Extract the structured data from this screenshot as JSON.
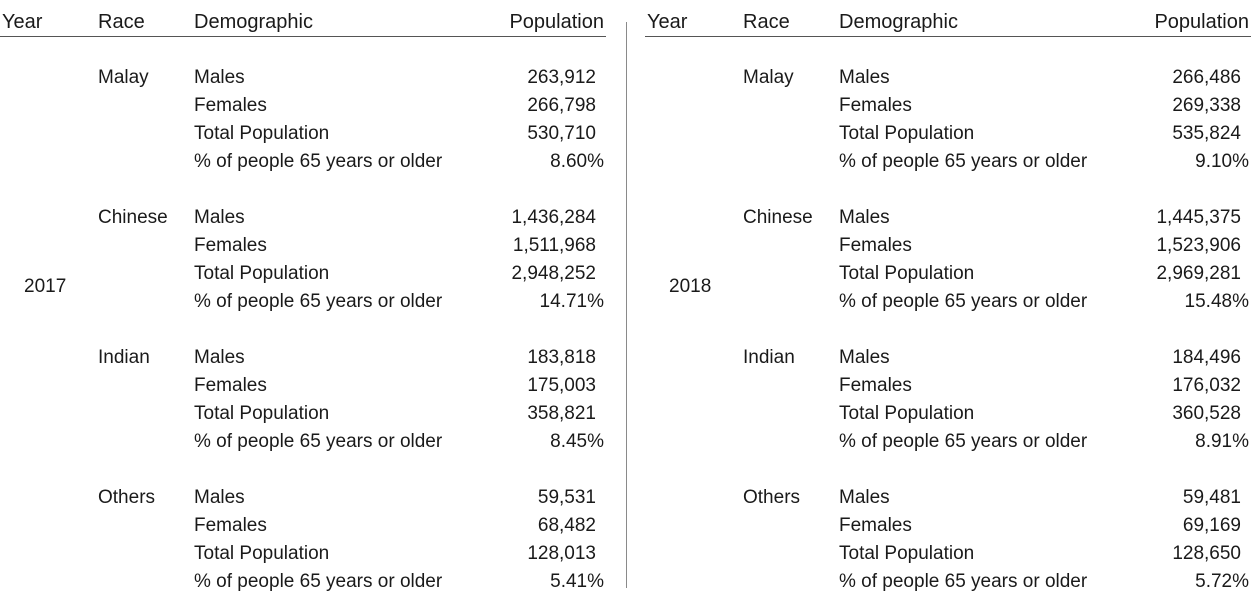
{
  "headers": {
    "year": "Year",
    "race": "Race",
    "demographic": "Demographic",
    "population": "Population"
  },
  "panels": [
    {
      "year": "2017",
      "groups": [
        {
          "race": "Malay",
          "rows": [
            {
              "label": "Males",
              "value": "263,912"
            },
            {
              "label": "Females",
              "value": "266,798"
            },
            {
              "label": "Total Population",
              "value": "530,710"
            },
            {
              "label": "% of people 65 years or older",
              "value": "8.60%"
            }
          ]
        },
        {
          "race": "Chinese",
          "rows": [
            {
              "label": "Males",
              "value": "1,436,284"
            },
            {
              "label": "Females",
              "value": "1,511,968"
            },
            {
              "label": "Total Population",
              "value": "2,948,252"
            },
            {
              "label": "% of people 65 years or older",
              "value": "14.71%"
            }
          ]
        },
        {
          "race": "Indian",
          "rows": [
            {
              "label": "Males",
              "value": "183,818"
            },
            {
              "label": "Females",
              "value": "175,003"
            },
            {
              "label": "Total Population",
              "value": "358,821"
            },
            {
              "label": "% of people 65 years or older",
              "value": "8.45%"
            }
          ]
        },
        {
          "race": "Others",
          "rows": [
            {
              "label": "Males",
              "value": "59,531"
            },
            {
              "label": "Females",
              "value": "68,482"
            },
            {
              "label": "Total Population",
              "value": "128,013"
            },
            {
              "label": "% of people 65 years or older",
              "value": "5.41%"
            }
          ]
        }
      ]
    },
    {
      "year": "2018",
      "groups": [
        {
          "race": "Malay",
          "rows": [
            {
              "label": "Males",
              "value": "266,486"
            },
            {
              "label": "Females",
              "value": "269,338"
            },
            {
              "label": "Total Population",
              "value": "535,824"
            },
            {
              "label": "% of people 65 years or older",
              "value": "9.10%"
            }
          ]
        },
        {
          "race": "Chinese",
          "rows": [
            {
              "label": "Males",
              "value": "1,445,375"
            },
            {
              "label": "Females",
              "value": "1,523,906"
            },
            {
              "label": "Total Population",
              "value": "2,969,281"
            },
            {
              "label": "% of people 65 years or older",
              "value": "15.48%"
            }
          ]
        },
        {
          "race": "Indian",
          "rows": [
            {
              "label": "Males",
              "value": "184,496"
            },
            {
              "label": "Females",
              "value": "176,032"
            },
            {
              "label": "Total Population",
              "value": "360,528"
            },
            {
              "label": "% of people 65 years or older",
              "value": "8.91%"
            }
          ]
        },
        {
          "race": "Others",
          "rows": [
            {
              "label": "Males",
              "value": "59,481"
            },
            {
              "label": "Females",
              "value": "69,169"
            },
            {
              "label": "Total Population",
              "value": "128,650"
            },
            {
              "label": "% of people 65 years or older",
              "value": "5.72%"
            }
          ]
        }
      ]
    }
  ]
}
